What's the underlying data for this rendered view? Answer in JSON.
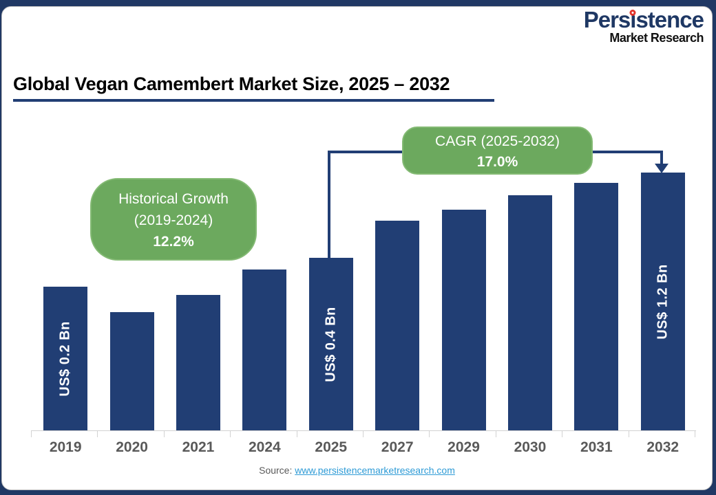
{
  "logo": {
    "part1": "Pers",
    "i": "i",
    "part2": "stence",
    "subtitle": "Market Research"
  },
  "title": {
    "text": "Global Vegan Camembert Market Size, 2025 – 2032"
  },
  "callouts": {
    "historical": {
      "line1": "Historical Growth",
      "line2": "(2019-2024)",
      "value": "12.2%"
    },
    "cagr": {
      "line1": "CAGR (2025-2032)",
      "value": "17.0%"
    }
  },
  "chart_data": {
    "type": "bar",
    "title": "Global Vegan Camembert Market Size, 2025 – 2032",
    "categories": [
      "2019",
      "2020",
      "2021",
      "2024",
      "2025",
      "2027",
      "2029",
      "2030",
      "2031",
      "2032"
    ],
    "values_us_bn": [
      0.2,
      null,
      null,
      null,
      0.4,
      null,
      null,
      null,
      null,
      1.2
    ],
    "bar_labels": [
      "US$ 0.2 Bn",
      "",
      "",
      "",
      "US$ 0.4 Bn",
      "",
      "",
      "",
      "",
      "US$ 1.2 Bn"
    ],
    "relative_heights": [
      0.557,
      0.459,
      0.525,
      0.624,
      0.669,
      0.813,
      0.856,
      0.912,
      0.96,
      1.0
    ],
    "historical_growth_pct": 12.2,
    "cagr_pct": 17.0,
    "bar_color": "#213E74",
    "bar_label_color": "#FFFFFF",
    "callout_color": "#6CA95E",
    "axis_color": "#D2D2D2",
    "tick_label_color": "#595959",
    "legend": "none",
    "grid": "off",
    "xlabel": "",
    "ylabel": ""
  },
  "source": {
    "prefix": "Source: ",
    "link": "www.persistencemarketresearch.com"
  }
}
